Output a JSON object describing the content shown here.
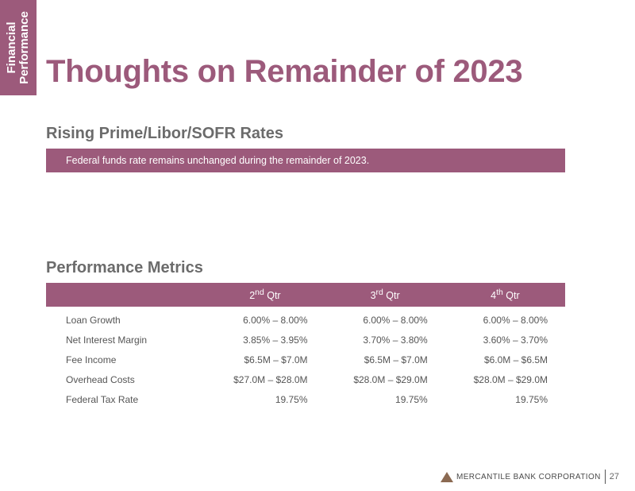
{
  "side_tab": {
    "line1": "Financial",
    "line2": "Performance"
  },
  "page_title": "Thoughts on Remainder of 2023",
  "rates_section": {
    "heading": "Rising Prime/Libor/SOFR Rates",
    "banner_text": "Federal funds rate remains unchanged during the remainder of 2023."
  },
  "metrics_section": {
    "heading": "Performance Metrics",
    "columns": [
      {
        "number": "2",
        "ordinal": "nd",
        "label": "Qtr"
      },
      {
        "number": "3",
        "ordinal": "rd",
        "label": "Qtr"
      },
      {
        "number": "4",
        "ordinal": "th",
        "label": "Qtr"
      }
    ],
    "rows": [
      {
        "label": "Loan Growth",
        "values": [
          "6.00% – 8.00%",
          "6.00% – 8.00%",
          "6.00% – 8.00%"
        ]
      },
      {
        "label": "Net Interest Margin",
        "values": [
          "3.85% – 3.95%",
          "3.70% – 3.80%",
          "3.60% – 3.70%"
        ]
      },
      {
        "label": "Fee Income",
        "values": [
          "$6.5M – $7.0M",
          "$6.5M – $7.0M",
          "$6.0M – $6.5M"
        ]
      },
      {
        "label": "Overhead Costs",
        "values": [
          "$27.0M – $28.0M",
          "$28.0M – $29.0M",
          "$28.0M – $29.0M"
        ]
      },
      {
        "label": "Federal Tax Rate",
        "values": [
          "19.75%",
          "19.75%",
          "19.75%"
        ]
      }
    ]
  },
  "footer": {
    "company": "MERCANTILE BANK CORPORATION",
    "page_number": "27"
  },
  "colors": {
    "accent": "#9c5a7b",
    "logo": "#8b6a52"
  }
}
